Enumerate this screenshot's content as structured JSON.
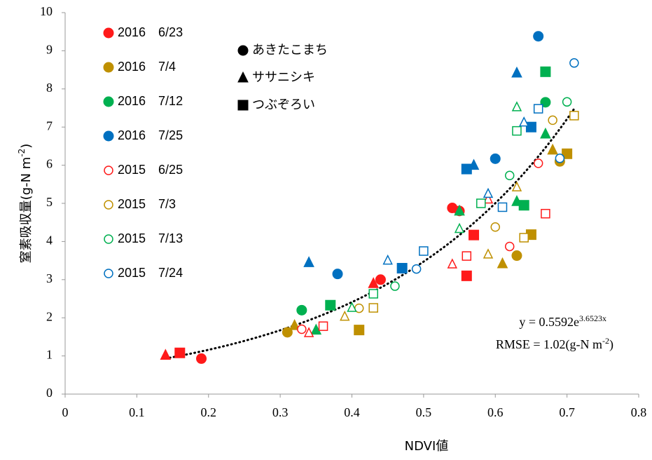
{
  "chart_data": {
    "type": "scatter",
    "x_label": "NDVI値",
    "y_label": {
      "text": "窒素吸収量(g-N m",
      "sup": "-2",
      "tail": ")"
    },
    "xlim": [
      0,
      0.8
    ],
    "xticks": [
      0,
      0.1,
      0.2,
      0.3,
      0.4,
      0.5,
      0.6,
      0.7,
      0.8
    ],
    "ylim": [
      0,
      10
    ],
    "yticks": [
      0,
      1,
      2,
      3,
      4,
      5,
      6,
      7,
      8,
      9,
      10
    ],
    "grid": false,
    "varieties": [
      {
        "name": "あきたこまち",
        "shape": "circle"
      },
      {
        "name": "ササニシキ",
        "shape": "triangle"
      },
      {
        "name": "つぶぞろい",
        "shape": "square"
      }
    ],
    "series": [
      {
        "name": "2016　6/23",
        "color": "#ff1a1a",
        "filled": true,
        "groups": [
          {
            "x": [
              0.19,
              0.44,
              0.54,
              0.55
            ],
            "y": [
              0.93,
              3.0,
              4.88,
              4.8
            ]
          },
          {
            "x": [
              0.14,
              0.43
            ],
            "y": [
              1.02,
              2.9
            ]
          },
          {
            "x": [
              0.16,
              0.57,
              0.56
            ],
            "y": [
              1.08,
              4.17,
              3.1
            ]
          }
        ]
      },
      {
        "name": "2016　7/4",
        "color": "#bf9000",
        "filled": true,
        "groups": [
          {
            "x": [
              0.31,
              0.63,
              0.69
            ],
            "y": [
              1.62,
              3.63,
              6.1
            ]
          },
          {
            "x": [
              0.32,
              0.61,
              0.68
            ],
            "y": [
              1.8,
              3.42,
              6.4
            ]
          },
          {
            "x": [
              0.41,
              0.65,
              0.7
            ],
            "y": [
              1.68,
              4.18,
              6.3
            ]
          }
        ]
      },
      {
        "name": "2016　7/12",
        "color": "#00b050",
        "filled": true,
        "groups": [
          {
            "x": [
              0.33,
              0.67
            ],
            "y": [
              2.2,
              7.65
            ]
          },
          {
            "x": [
              0.35,
              0.55,
              0.63,
              0.67
            ],
            "y": [
              1.68,
              4.8,
              5.05,
              6.82
            ]
          },
          {
            "x": [
              0.37,
              0.64,
              0.67
            ],
            "y": [
              2.33,
              4.95,
              8.45
            ]
          }
        ]
      },
      {
        "name": "2016　7/25",
        "color": "#0070c0",
        "filled": true,
        "groups": [
          {
            "x": [
              0.38,
              0.6,
              0.66
            ],
            "y": [
              3.15,
              6.17,
              9.38
            ]
          },
          {
            "x": [
              0.34,
              0.57,
              0.63
            ],
            "y": [
              3.45,
              6.0,
              8.42
            ]
          },
          {
            "x": [
              0.47,
              0.56,
              0.65
            ],
            "y": [
              3.3,
              5.9,
              7.0
            ]
          }
        ]
      },
      {
        "name": "2015　6/25",
        "color": "#ff1a1a",
        "filled": false,
        "groups": [
          {
            "x": [
              0.33,
              0.62,
              0.66
            ],
            "y": [
              1.7,
              3.87,
              6.05
            ]
          },
          {
            "x": [
              0.34,
              0.54,
              0.59
            ],
            "y": [
              1.6,
              3.4,
              5.1
            ]
          },
          {
            "x": [
              0.36,
              0.56,
              0.67
            ],
            "y": [
              1.78,
              3.62,
              4.73
            ]
          }
        ]
      },
      {
        "name": "2015　7/3",
        "color": "#bf9000",
        "filled": false,
        "groups": [
          {
            "x": [
              0.41,
              0.6,
              0.68
            ],
            "y": [
              2.25,
              4.38,
              7.18
            ]
          },
          {
            "x": [
              0.39,
              0.59,
              0.63
            ],
            "y": [
              2.03,
              3.66,
              5.42
            ]
          },
          {
            "x": [
              0.43,
              0.64,
              0.71
            ],
            "y": [
              2.26,
              4.1,
              7.3
            ]
          }
        ]
      },
      {
        "name": "2015　7/13",
        "color": "#00b050",
        "filled": false,
        "groups": [
          {
            "x": [
              0.46,
              0.62,
              0.7
            ],
            "y": [
              2.83,
              5.73,
              7.66
            ]
          },
          {
            "x": [
              0.4,
              0.55,
              0.63
            ],
            "y": [
              2.26,
              4.33,
              7.52
            ]
          },
          {
            "x": [
              0.43,
              0.58,
              0.63
            ],
            "y": [
              2.63,
              5.0,
              6.9
            ]
          }
        ]
      },
      {
        "name": "2015　7/24",
        "color": "#0070c0",
        "filled": false,
        "groups": [
          {
            "x": [
              0.49,
              0.69,
              0.71
            ],
            "y": [
              3.28,
              6.18,
              8.68
            ]
          },
          {
            "x": [
              0.45,
              0.59,
              0.64
            ],
            "y": [
              3.5,
              5.25,
              7.12
            ]
          },
          {
            "x": [
              0.5,
              0.61,
              0.66
            ],
            "y": [
              3.75,
              4.9,
              7.48
            ]
          }
        ]
      }
    ],
    "trendline": {
      "a": 0.5592,
      "b": 3.6523,
      "x_range": [
        0.14,
        0.71
      ]
    },
    "equation": {
      "text": "y = 0.5592e",
      "sup": "3.6523x"
    },
    "rmse": {
      "text": "RMSE = 1.02(g-N m",
      "sup": "-2",
      "tail": ")"
    }
  }
}
